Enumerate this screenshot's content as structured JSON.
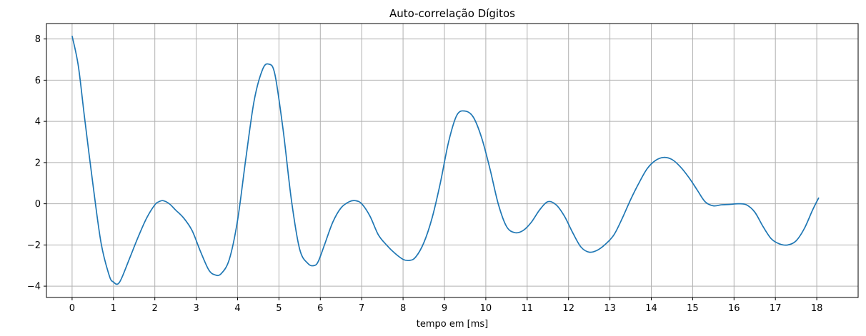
{
  "chart_data": {
    "type": "line",
    "title": "Auto-correlação Dígitos",
    "xlabel": "tempo em [ms]",
    "ylabel": "",
    "xlim": [
      -0.62,
      19.0
    ],
    "ylim": [
      -4.55,
      8.75
    ],
    "xticks": [
      0,
      1,
      2,
      3,
      4,
      5,
      6,
      7,
      8,
      9,
      10,
      11,
      12,
      13,
      14,
      15,
      16,
      17,
      18
    ],
    "yticks": [
      -4,
      -2,
      0,
      2,
      4,
      6,
      8
    ],
    "grid": true,
    "line_color": "#1f77b4",
    "series": [
      {
        "name": "",
        "x": [
          0,
          0.15,
          0.3,
          0.5,
          0.7,
          0.9,
          1.0,
          1.1,
          1.2,
          1.4,
          1.6,
          1.8,
          2.0,
          2.1,
          2.2,
          2.35,
          2.5,
          2.7,
          2.9,
          3.1,
          3.3,
          3.45,
          3.6,
          3.8,
          4.0,
          4.2,
          4.4,
          4.6,
          4.75,
          4.9,
          5.1,
          5.3,
          5.5,
          5.7,
          5.85,
          5.95,
          6.1,
          6.3,
          6.5,
          6.7,
          6.85,
          7.0,
          7.2,
          7.4,
          7.6,
          7.8,
          8.0,
          8.15,
          8.3,
          8.5,
          8.7,
          8.9,
          9.1,
          9.3,
          9.5,
          9.7,
          9.9,
          10.1,
          10.3,
          10.5,
          10.7,
          10.9,
          11.1,
          11.3,
          11.5,
          11.7,
          11.9,
          12.1,
          12.3,
          12.5,
          12.7,
          12.9,
          13.1,
          13.3,
          13.5,
          13.7,
          13.9,
          14.1,
          14.3,
          14.5,
          14.7,
          14.9,
          15.1,
          15.3,
          15.5,
          15.7,
          15.9,
          16.1,
          16.3,
          16.5,
          16.7,
          16.9,
          17.1,
          17.3,
          17.5,
          17.7,
          17.9,
          18.05
        ],
        "values": [
          8.15,
          6.7,
          4.2,
          1.0,
          -1.9,
          -3.5,
          -3.8,
          -3.9,
          -3.6,
          -2.6,
          -1.6,
          -0.7,
          -0.05,
          0.1,
          0.15,
          0.0,
          -0.3,
          -0.7,
          -1.3,
          -2.3,
          -3.2,
          -3.45,
          -3.4,
          -2.7,
          -0.8,
          2.2,
          5.0,
          6.5,
          6.78,
          6.3,
          3.6,
          0.2,
          -2.2,
          -2.9,
          -3.0,
          -2.8,
          -2.0,
          -0.9,
          -0.2,
          0.1,
          0.15,
          0.0,
          -0.6,
          -1.5,
          -2.0,
          -2.4,
          -2.7,
          -2.75,
          -2.6,
          -1.9,
          -0.7,
          1.0,
          3.0,
          4.3,
          4.5,
          4.2,
          3.2,
          1.7,
          0.0,
          -1.1,
          -1.4,
          -1.3,
          -0.9,
          -0.3,
          0.1,
          -0.05,
          -0.6,
          -1.4,
          -2.1,
          -2.35,
          -2.25,
          -1.95,
          -1.5,
          -0.7,
          0.2,
          1.0,
          1.7,
          2.1,
          2.25,
          2.15,
          1.8,
          1.3,
          0.7,
          0.1,
          -0.1,
          -0.05,
          -0.03,
          0.0,
          -0.05,
          -0.4,
          -1.1,
          -1.7,
          -1.95,
          -2.0,
          -1.8,
          -1.2,
          -0.3,
          0.3
        ]
      }
    ]
  }
}
